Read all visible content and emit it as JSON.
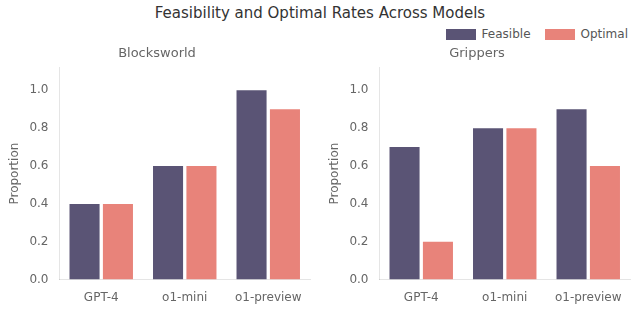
{
  "title": "Feasibility and Optimal Rates Across Models",
  "legend": "upper right",
  "chart_data": [
    {
      "type": "bar",
      "title": "Blocksworld",
      "ylabel": "Proportion",
      "categories": [
        "GPT-4",
        "o1-mini",
        "o1-preview"
      ],
      "series": [
        {
          "name": "Feasible",
          "color": "#5a5475",
          "values": [
            0.4,
            0.6,
            1.0
          ]
        },
        {
          "name": "Optimal",
          "color": "#e8837a",
          "values": [
            0.4,
            0.6,
            0.9
          ]
        }
      ],
      "ylim": [
        0,
        1.12
      ],
      "yticks": [
        {
          "value": 0.0,
          "label": "0.0"
        },
        0.2,
        0.4,
        0.6,
        0.8,
        {
          "value": 1.0,
          "label": "1.0"
        }
      ],
      "grid": false
    },
    {
      "type": "bar",
      "title": "Grippers",
      "ylabel": "Proportion",
      "categories": [
        "GPT-4",
        "o1-mini",
        "o1-preview"
      ],
      "series": [
        {
          "name": "Feasible",
          "color": "#5a5475",
          "values": [
            0.7,
            0.8,
            0.9
          ]
        },
        {
          "name": "Optimal",
          "color": "#e8837a",
          "values": [
            0.2,
            0.8,
            0.6
          ]
        }
      ],
      "ylim": [
        0,
        1.12
      ],
      "yticks": [
        {
          "value": 0.0,
          "label": "0.0"
        },
        0.2,
        0.4,
        0.6,
        0.8,
        {
          "value": 1.0,
          "label": "1.0"
        }
      ],
      "grid": false
    }
  ]
}
